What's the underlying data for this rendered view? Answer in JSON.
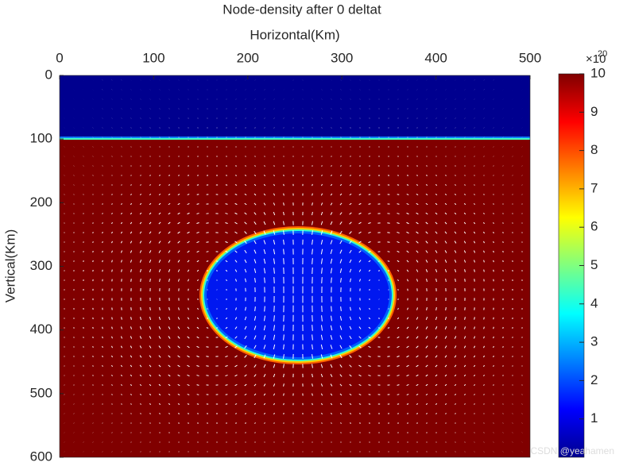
{
  "chart_data": {
    "type": "heatmap",
    "title": "Node-density after 0 deltat",
    "xlabel": "Horizontal(Km)",
    "ylabel": "Vertical(Km)",
    "xlim": [
      0,
      500
    ],
    "xticks": [
      0,
      100,
      200,
      300,
      400,
      500
    ],
    "ylim": [
      0,
      600
    ],
    "yticks": [
      0,
      100,
      200,
      300,
      400,
      500,
      600
    ],
    "y_reversed": true,
    "colormap": "jet",
    "clim": [
      0,
      10
    ],
    "cticks": [
      1,
      2,
      3,
      4,
      5,
      6,
      7,
      8,
      9,
      10
    ],
    "colorbar_multiplier": "×10",
    "colorbar_exponent": "20",
    "watermark": "CSDN @yeahamen"
  }
}
